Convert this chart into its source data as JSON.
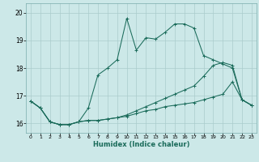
{
  "xlabel": "Humidex (Indice chaleur)",
  "background_color": "#cce8e8",
  "grid_color": "#aacccc",
  "line_color": "#1a6b5a",
  "xlim": [
    -0.5,
    23.5
  ],
  "ylim": [
    15.65,
    20.35
  ],
  "yticks": [
    16,
    17,
    18,
    19,
    20
  ],
  "xticks": [
    0,
    1,
    2,
    3,
    4,
    5,
    6,
    7,
    8,
    9,
    10,
    11,
    12,
    13,
    14,
    15,
    16,
    17,
    18,
    19,
    20,
    21,
    22,
    23
  ],
  "series1_x": [
    0,
    1,
    2,
    3,
    4,
    5,
    6,
    7,
    8,
    9,
    10,
    11,
    12,
    13,
    14,
    15,
    16,
    17,
    18,
    19,
    20,
    21,
    22,
    23
  ],
  "series1_y": [
    16.8,
    16.55,
    16.05,
    15.95,
    15.95,
    16.05,
    16.55,
    17.75,
    18.0,
    18.3,
    19.8,
    18.65,
    19.1,
    19.05,
    19.3,
    19.6,
    19.6,
    19.45,
    18.45,
    18.3,
    18.15,
    18.0,
    16.85,
    16.65
  ],
  "series2_x": [
    0,
    1,
    2,
    3,
    4,
    5,
    6,
    7,
    8,
    9,
    10,
    11,
    12,
    13,
    14,
    15,
    16,
    17,
    18,
    19,
    20,
    21,
    22,
    23
  ],
  "series2_y": [
    16.8,
    16.55,
    16.05,
    15.95,
    15.95,
    16.05,
    16.1,
    16.1,
    16.15,
    16.2,
    16.3,
    16.45,
    16.6,
    16.75,
    16.9,
    17.05,
    17.2,
    17.35,
    17.7,
    18.1,
    18.2,
    18.1,
    16.85,
    16.65
  ],
  "series3_x": [
    0,
    1,
    2,
    3,
    4,
    5,
    6,
    7,
    8,
    9,
    10,
    11,
    12,
    13,
    14,
    15,
    16,
    17,
    18,
    19,
    20,
    21,
    22,
    23
  ],
  "series3_y": [
    16.8,
    16.55,
    16.05,
    15.95,
    15.95,
    16.05,
    16.1,
    16.1,
    16.15,
    16.2,
    16.25,
    16.35,
    16.45,
    16.5,
    16.6,
    16.65,
    16.7,
    16.75,
    16.85,
    16.95,
    17.05,
    17.5,
    16.85,
    16.65
  ]
}
